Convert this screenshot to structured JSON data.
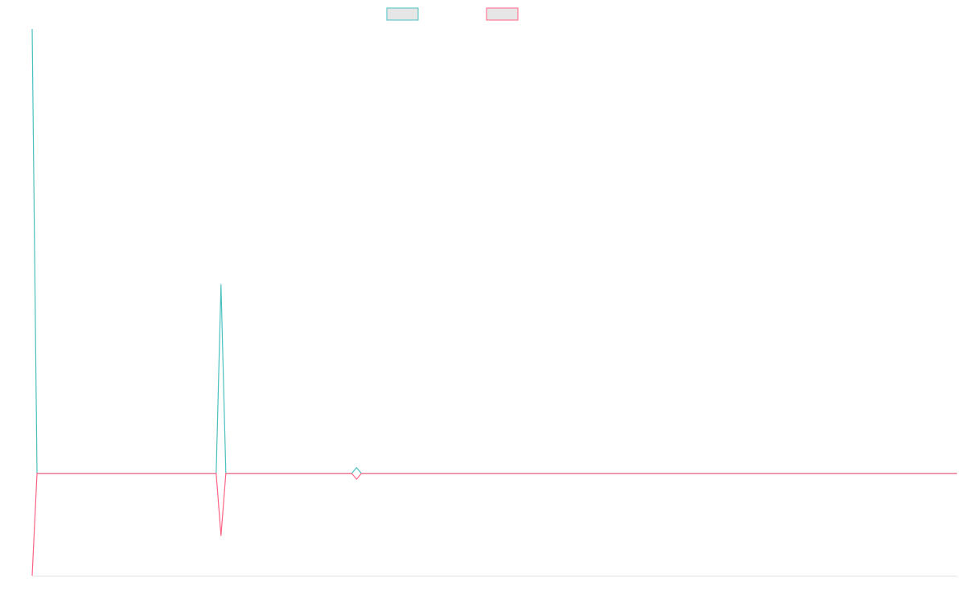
{
  "chart_data": {
    "type": "line",
    "x": [
      0,
      1,
      38,
      39,
      40,
      66,
      67,
      68,
      191
    ],
    "xlim": [
      0,
      191
    ],
    "ylim": [
      -23,
      100
    ],
    "series": [
      {
        "color": "#4bc0c0",
        "values": [
          100,
          0,
          0,
          42.5,
          0,
          0,
          1.3,
          0,
          0
        ]
      },
      {
        "color": "#ff6384",
        "values": [
          -23,
          0,
          0,
          -14,
          0,
          0,
          -1.3,
          0,
          0
        ]
      }
    ]
  }
}
